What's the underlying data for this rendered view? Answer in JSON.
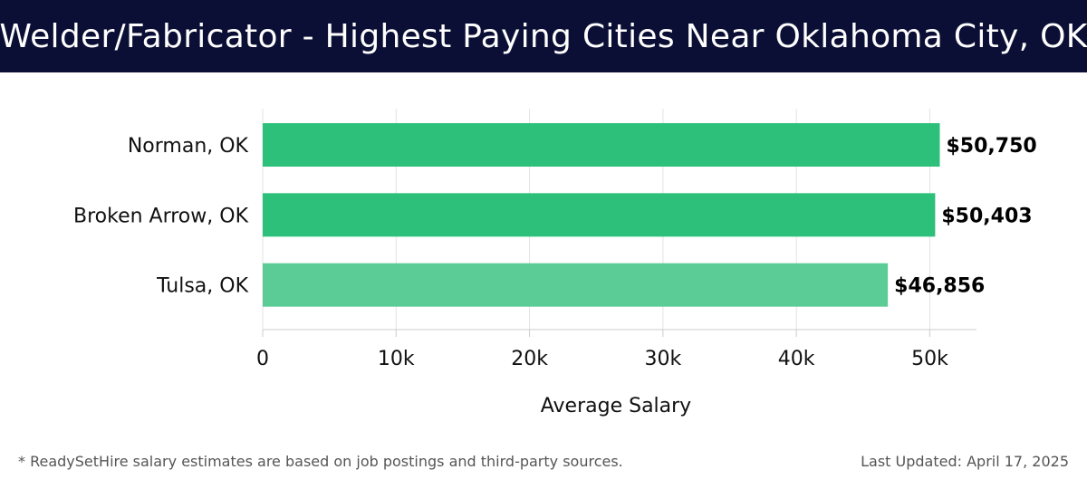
{
  "header": {
    "title": "Welder/Fabricator - Highest Paying Cities Near Oklahoma City, OK"
  },
  "footer": {
    "note": "* ReadySetHire salary estimates are based on job postings and third-party sources.",
    "updated": "Last Updated: April 17, 2025"
  },
  "colors": {
    "header_bg": "#0b0f35",
    "bar_primary": "#2cc07b",
    "bar_secondary": "#5ccc97"
  },
  "chart_data": {
    "type": "bar",
    "orientation": "horizontal",
    "categories": [
      "Norman, OK",
      "Broken Arrow, OK",
      "Tulsa, OK"
    ],
    "values": [
      50750,
      50403,
      46856
    ],
    "value_labels": [
      "$50,750",
      "$50,403",
      "$46,856"
    ],
    "xlabel": "Average Salary",
    "ylabel": "",
    "xlim": [
      0,
      53500
    ],
    "x_ticks": [
      0,
      10000,
      20000,
      30000,
      40000,
      50000
    ],
    "x_tick_labels": [
      "0",
      "10k",
      "20k",
      "30k",
      "40k",
      "50k"
    ],
    "grid": true
  }
}
